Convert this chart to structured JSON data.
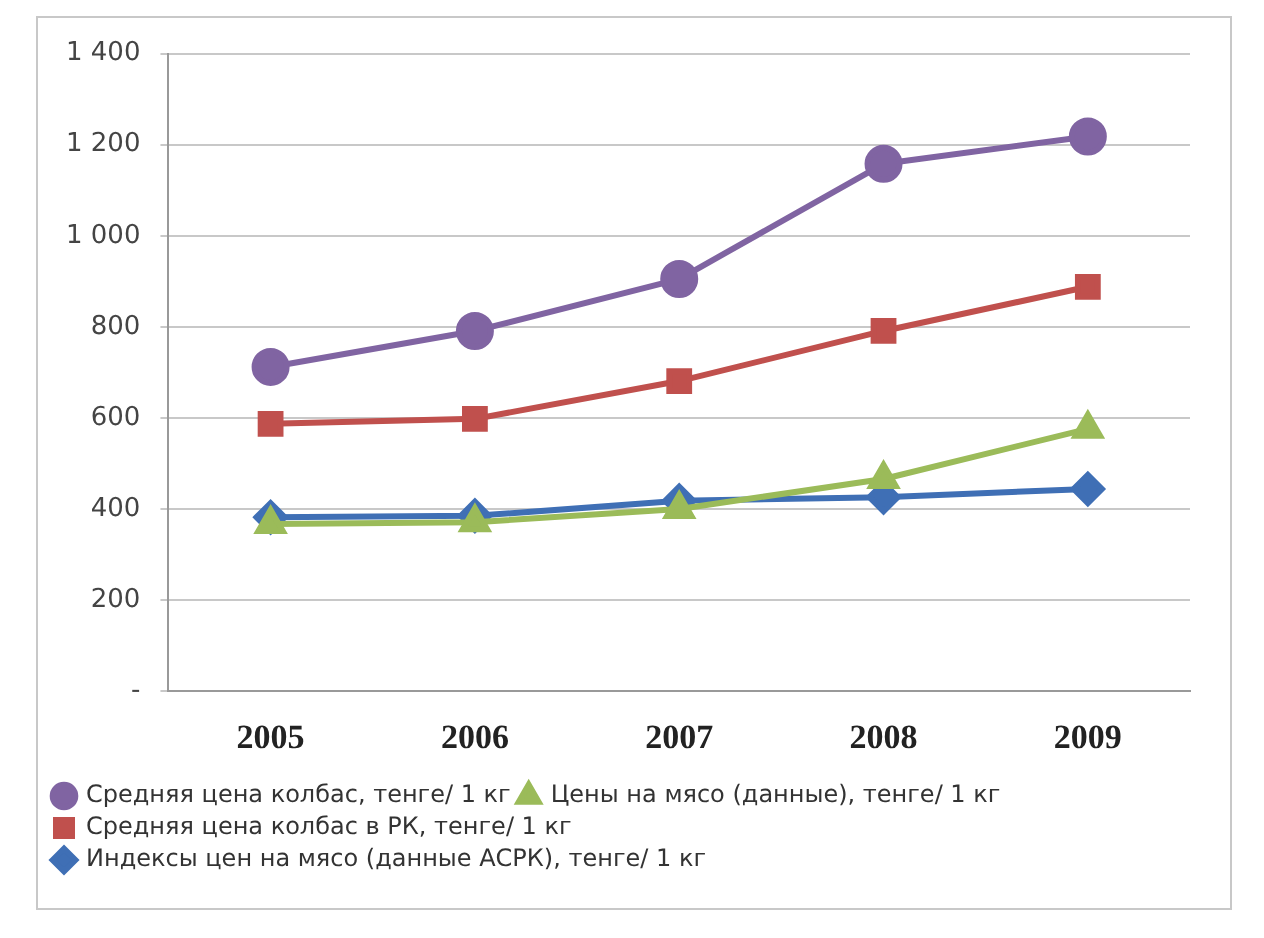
{
  "chart_data": {
    "type": "line",
    "categories": [
      "2005",
      "2006",
      "2007",
      "2008",
      "2009"
    ],
    "series": [
      {
        "name": "Индексы цен на мясо (данные АСРК), тенге/ 1 кг",
        "color": "#3f6fb5",
        "marker": "diamond",
        "values": [
          382,
          385,
          418,
          426,
          444
        ]
      },
      {
        "name": "Средняя цена колбас в РК, тенге/ 1 кг",
        "color": "#c0504d",
        "marker": "square",
        "values": [
          587,
          598,
          681,
          791,
          888
        ]
      },
      {
        "name": "Цены на мясо (данные), тенге/ 1 кг",
        "color": "#9bbb59",
        "marker": "triangle",
        "values": [
          367,
          371,
          400,
          466,
          576
        ]
      },
      {
        "name": "Средняя цена колбас, тенге/ 1 кг",
        "color": "#8064a2",
        "marker": "circle",
        "values": [
          712,
          791,
          905,
          1158,
          1218
        ]
      }
    ],
    "ylim": [
      0,
      1400
    ],
    "yticks": [
      {
        "value": 0,
        "label": "-"
      },
      200,
      400,
      600,
      800,
      {
        "value": 1000,
        "label": "1 000"
      },
      {
        "value": 1200,
        "label": "1 200"
      },
      {
        "value": 1400,
        "label": "1 400"
      }
    ],
    "grid": "y",
    "legend": "bottom",
    "line_style": "solid"
  }
}
